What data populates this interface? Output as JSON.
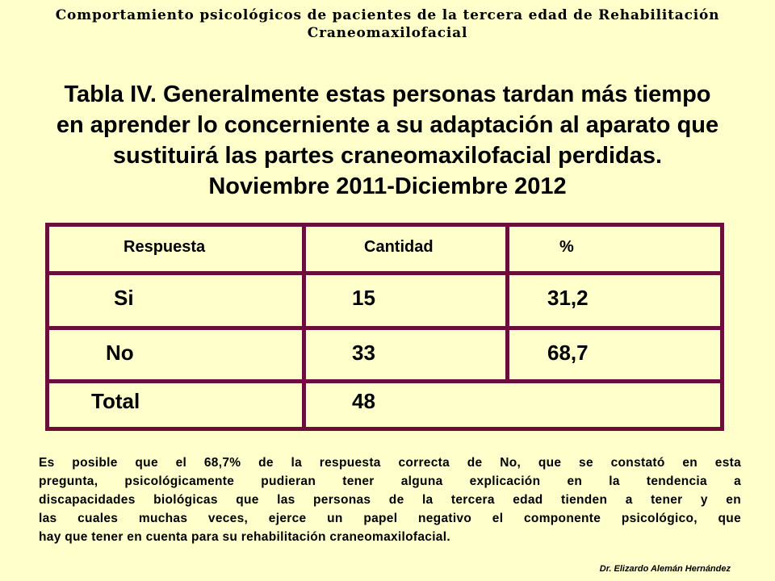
{
  "header": {
    "line1": "Comportamiento psicológicos de pacientes de la tercera edad de Rehabilitación",
    "line2": "Craneomaxilofacial"
  },
  "title": {
    "line1": "Tabla IV. Generalmente estas personas tardan más tiempo",
    "line2": "en aprender lo concerniente a su adaptación al aparato que",
    "line3": "sustituirá las partes craneomaxilofacial perdidas.",
    "line4": "Noviembre 2011-Diciembre 2012"
  },
  "table": {
    "headers": [
      "Respuesta",
      "Cantidad",
      "%"
    ],
    "rows": [
      [
        "Si",
        "15",
        "31,2"
      ],
      [
        "No",
        "33",
        "68,7"
      ],
      [
        "Total",
        "48",
        ""
      ]
    ]
  },
  "paragraph": {
    "lines": [
      "Es posible que el 68,7% de la respuesta correcta de No, que se constató en  esta",
      "pregunta, psicológicamente pudieran tener alguna explicación en la tendencia a",
      "discapacidades biológicas  que las personas de la tercera edad tienden a tener y en",
      "las cuales muchas veces, ejerce un papel negativo el componente psicológico, que",
      "hay que  tener en cuenta para su rehabilitación craneomaxilofacial."
    ]
  },
  "author": "Dr. Elizardo Alemán Hernández",
  "colors": {
    "background": "#ffffcc",
    "table_border": "#6b0f3a"
  }
}
